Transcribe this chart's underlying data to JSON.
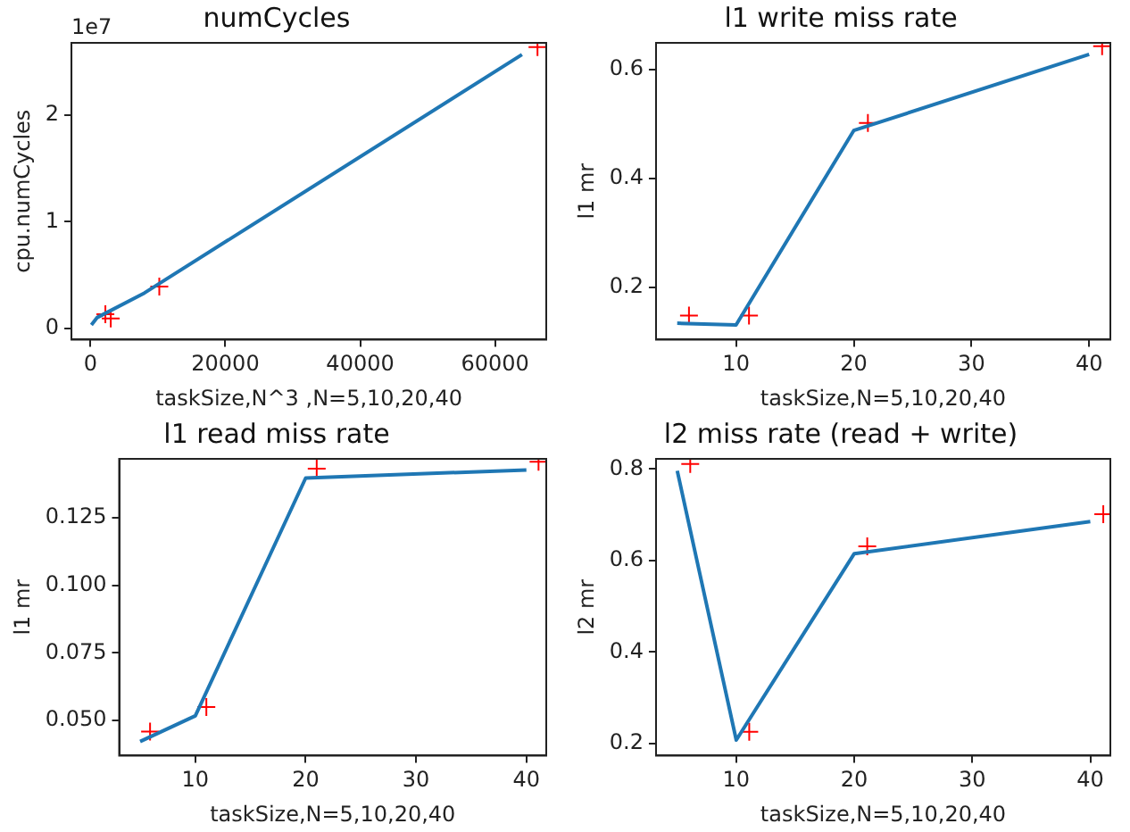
{
  "chart_data": [
    {
      "type": "line",
      "title": "numCycles",
      "xlabel": "taskSize,N^3 ,N=5,10,20,40",
      "ylabel": "cpu.numCycles",
      "annotations": [
        "1e7"
      ],
      "xlim": [
        -2830,
        67600
      ],
      "xticks": [
        0,
        20000,
        40000,
        60000
      ],
      "ylim": [
        -0.108,
        2.68
      ],
      "yticks": [
        0,
        1,
        2
      ],
      "grid": false,
      "legend": false,
      "series": [
        {
          "type": "line",
          "color": "#1f77b4",
          "marker": "none",
          "x": [
            125,
            1000,
            8000,
            64000
          ],
          "values": [
            0.03,
            0.1,
            0.33,
            2.57
          ]
        },
        {
          "type": "scatter",
          "color": "#ff0000",
          "marker": "cross",
          "x": [
            2200,
            3000,
            10200,
            66300
          ],
          "values": [
            0.13,
            0.09,
            0.39,
            2.64
          ]
        }
      ]
    },
    {
      "type": "line",
      "title": "l1 write miss rate",
      "xlabel": "taskSize,N=5,10,20,40",
      "ylabel": "l1 mr",
      "xlim": [
        3.2,
        41.8
      ],
      "xticks": [
        10,
        20,
        30,
        40
      ],
      "ylim": [
        0.104,
        0.649
      ],
      "yticks": [
        {
          "value": 0.2,
          "label": "0.2"
        },
        {
          "value": 0.4,
          "label": "0.4"
        },
        {
          "value": 0.6,
          "label": "0.6"
        }
      ],
      "grid": false,
      "legend": false,
      "series": [
        {
          "type": "line",
          "color": "#1f77b4",
          "marker": "none",
          "x": [
            5,
            10,
            20,
            40
          ],
          "values": [
            0.134,
            0.131,
            0.488,
            0.628
          ]
        },
        {
          "type": "scatter",
          "color": "#ff0000",
          "marker": "cross",
          "x": [
            6,
            11.1,
            21.2,
            41.1
          ],
          "values": [
            0.148,
            0.148,
            0.502,
            0.643
          ]
        }
      ]
    },
    {
      "type": "line",
      "title": "l1 read miss rate",
      "xlabel": "taskSize,N=5,10,20,40",
      "ylabel": "l1 mr",
      "xlim": [
        3.1,
        41.8
      ],
      "xticks": [
        10,
        20,
        30,
        40
      ],
      "ylim": [
        0.037,
        0.1468
      ],
      "yticks": [
        {
          "value": 0.05,
          "label": "0.050"
        },
        {
          "value": 0.075,
          "label": "0.075"
        },
        {
          "value": 0.1,
          "label": "0.100"
        },
        {
          "value": 0.125,
          "label": "0.125"
        }
      ],
      "grid": false,
      "legend": false,
      "series": [
        {
          "type": "line",
          "color": "#1f77b4",
          "marker": "none",
          "x": [
            5,
            10,
            20,
            40
          ],
          "values": [
            0.0422,
            0.0517,
            0.1397,
            0.1427
          ]
        },
        {
          "type": "scatter",
          "color": "#ff0000",
          "marker": "cross",
          "x": [
            5.9,
            11,
            21,
            41.1
          ],
          "values": [
            0.0459,
            0.055,
            0.1432,
            0.1457
          ]
        }
      ]
    },
    {
      "type": "line",
      "title": "l2 miss rate (read + write)",
      "xlabel": "taskSize,N=5,10,20,40",
      "ylabel": "l2 mr",
      "xlim": [
        3.2,
        41.7
      ],
      "xticks": [
        10,
        20,
        30,
        40
      ],
      "ylim": [
        0.174,
        0.822
      ],
      "yticks": [
        {
          "value": 0.2,
          "label": "0.2"
        },
        {
          "value": 0.4,
          "label": "0.4"
        },
        {
          "value": 0.6,
          "label": "0.6"
        },
        {
          "value": 0.8,
          "label": "0.8"
        }
      ],
      "grid": false,
      "legend": false,
      "series": [
        {
          "type": "line",
          "color": "#1f77b4",
          "marker": "none",
          "x": [
            5,
            10,
            20,
            40
          ],
          "values": [
            0.796,
            0.208,
            0.615,
            0.685
          ]
        },
        {
          "type": "scatter",
          "color": "#ff0000",
          "marker": "cross",
          "x": [
            6.1,
            11.1,
            21.1,
            41.1
          ],
          "values": [
            0.811,
            0.226,
            0.631,
            0.701
          ]
        }
      ]
    }
  ]
}
